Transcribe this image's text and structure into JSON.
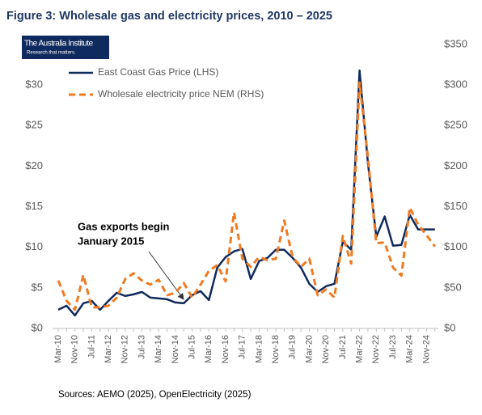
{
  "chart_data": {
    "type": "line",
    "title": "Figure 3: Wholesale gas and electricity prices, 2010 – 2025",
    "logo": {
      "name": "The Australia Institute",
      "tagline": "Research that matters."
    },
    "annotation": [
      "Gas exports begin",
      "January 2015"
    ],
    "source": "Sources: AEMO (2025), OpenElectricity (2025)",
    "legend": "upper left",
    "categories": [
      "Mar-10",
      null,
      "Nov-10",
      null,
      "Jul-11",
      null,
      "Mar-12",
      null,
      "Nov-12",
      null,
      "Jul-13",
      null,
      "Mar-14",
      null,
      "Nov-14",
      null,
      "Jul-15",
      null,
      "Mar-16",
      null,
      "Nov-16",
      null,
      "Jul-17",
      null,
      "Mar-18",
      null,
      "Nov-18",
      null,
      "Jul-19",
      null,
      "Mar-20",
      null,
      "Nov-20",
      null,
      "Jul-21",
      null,
      "Mar-22",
      null,
      "Nov-22",
      null,
      "Jul-23",
      null,
      "Mar-24",
      null,
      "Nov-24",
      null
    ],
    "series": [
      {
        "name": "East Coast Gas Price (LHS)",
        "color": "#102a5c",
        "axis": "y",
        "dash": false,
        "values": [
          2.3,
          2.8,
          1.6,
          3.1,
          3.4,
          2.3,
          3.4,
          4.4,
          4.0,
          4.2,
          4.5,
          3.8,
          3.7,
          3.6,
          3.2,
          3.1,
          4.1,
          4.6,
          3.5,
          7.5,
          8.8,
          9.5,
          9.8,
          6.1,
          8.3,
          8.7,
          9.7,
          9.7,
          8.7,
          7.5,
          5.5,
          4.5,
          5.2,
          5.5,
          10.7,
          9.7,
          31.8,
          20.4,
          11.3,
          13.8,
          10.2,
          10.3,
          14.0,
          12.2,
          12.2,
          12.2
        ]
      },
      {
        "name": "Wholesale electricity price NEM (RHS)",
        "color": "#f07a21",
        "axis": "y2",
        "dash": true,
        "values": [
          59,
          34,
          23,
          66,
          26,
          26,
          28,
          38,
          61,
          68,
          59,
          54,
          60,
          41,
          44,
          56,
          38,
          54,
          71,
          78,
          58,
          143,
          86,
          76,
          88,
          84,
          86,
          133,
          88,
          76,
          86,
          41,
          48,
          38,
          114,
          80,
          303,
          211,
          105,
          106,
          75,
          65,
          149,
          128,
          115,
          101
        ]
      }
    ],
    "ylim": [
      0,
      35
    ],
    "yticks": [
      {
        "value": 0,
        "label": "$0"
      },
      {
        "value": 5,
        "label": "$5"
      },
      {
        "value": 10,
        "label": "$10"
      },
      {
        "value": 15,
        "label": "$15"
      },
      {
        "value": 20,
        "label": "$20"
      },
      {
        "value": 25,
        "label": "$25"
      },
      {
        "value": 30,
        "label": "$30"
      }
    ],
    "y2lim": [
      0,
      350
    ],
    "y2ticks": [
      {
        "value": 0,
        "label": "$0"
      },
      {
        "value": 50,
        "label": "$50"
      },
      {
        "value": 100,
        "label": "$100"
      },
      {
        "value": 150,
        "label": "$150"
      },
      {
        "value": 200,
        "label": "$200"
      },
      {
        "value": 250,
        "label": "$250"
      },
      {
        "value": 300,
        "label": "$300"
      },
      {
        "value": 350,
        "label": "$350"
      }
    ],
    "grid": false
  }
}
